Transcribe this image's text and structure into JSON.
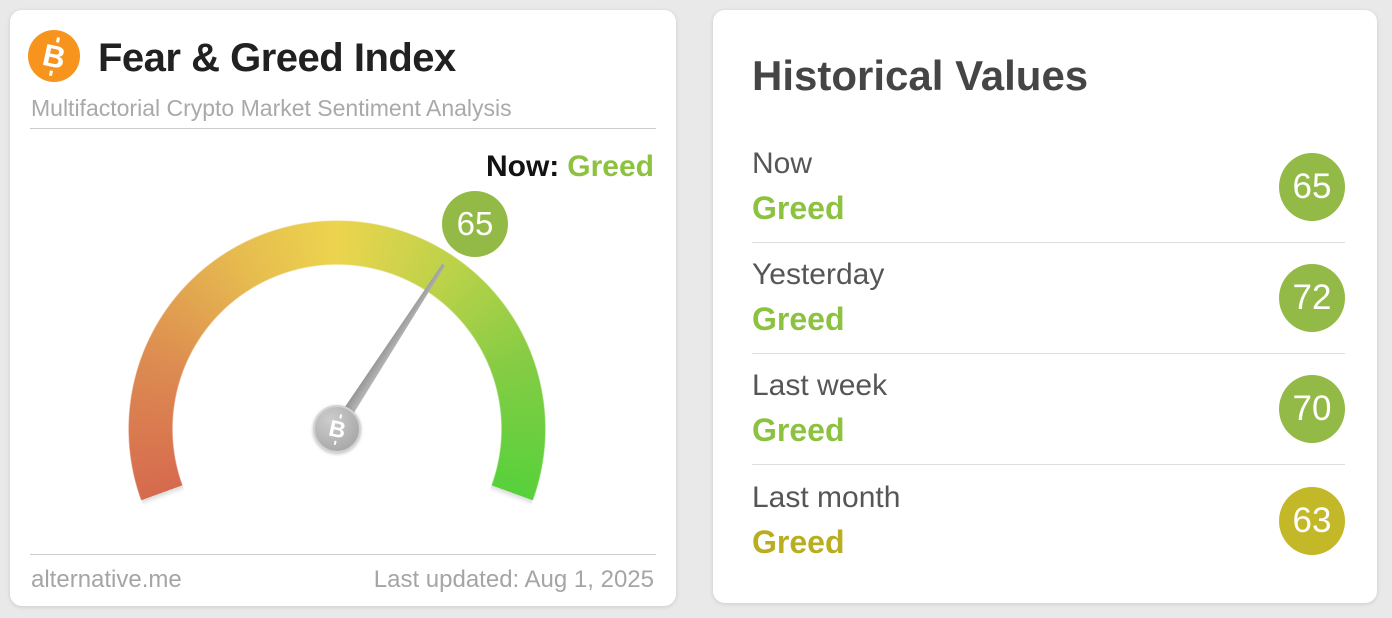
{
  "colors": {
    "page_background": "#e9e9e9",
    "card_background": "#ffffff",
    "bitcoin_orange": "#f7941d",
    "greed_green_text": "#8cc23f",
    "greed_olive_text": "#b9ad20",
    "badge_green": "#93ba46",
    "badge_olive": "#c3b827",
    "needle_gray": "#a8a8a8"
  },
  "index_card": {
    "logo": "bitcoin",
    "title": "Fear & Greed Index",
    "subtitle": "Multifactorial Crypto Market Sentiment Analysis",
    "now_label": "Now:",
    "now_classification": "Greed",
    "now_classification_color": "#8cc23f",
    "gauge": {
      "value": 65,
      "min": 0,
      "max": 100,
      "sweep_deg": 220,
      "badge_color": "#93ba46",
      "gradient": [
        [
          "#d66a4e",
          0
        ],
        [
          "#dd8b51",
          40
        ],
        [
          "#e6bb4f",
          80
        ],
        [
          "#ecd44e",
          110
        ],
        [
          "#bcd249",
          145
        ],
        [
          "#85cc44",
          180
        ],
        [
          "#57d13b",
          220
        ]
      ]
    },
    "footer": {
      "source": "alternative.me",
      "last_updated": "Last updated: Aug 1, 2025"
    }
  },
  "historical_card": {
    "title": "Historical Values",
    "rows": [
      {
        "label": "Now",
        "classification": "Greed",
        "value": 65,
        "text_color": "#8cc23f",
        "badge_color": "#93ba46"
      },
      {
        "label": "Yesterday",
        "classification": "Greed",
        "value": 72,
        "text_color": "#8cc23f",
        "badge_color": "#93ba46"
      },
      {
        "label": "Last week",
        "classification": "Greed",
        "value": 70,
        "text_color": "#8cc23f",
        "badge_color": "#93ba46"
      },
      {
        "label": "Last month",
        "classification": "Greed",
        "value": 63,
        "text_color": "#b9ad20",
        "badge_color": "#c3b827"
      }
    ]
  }
}
